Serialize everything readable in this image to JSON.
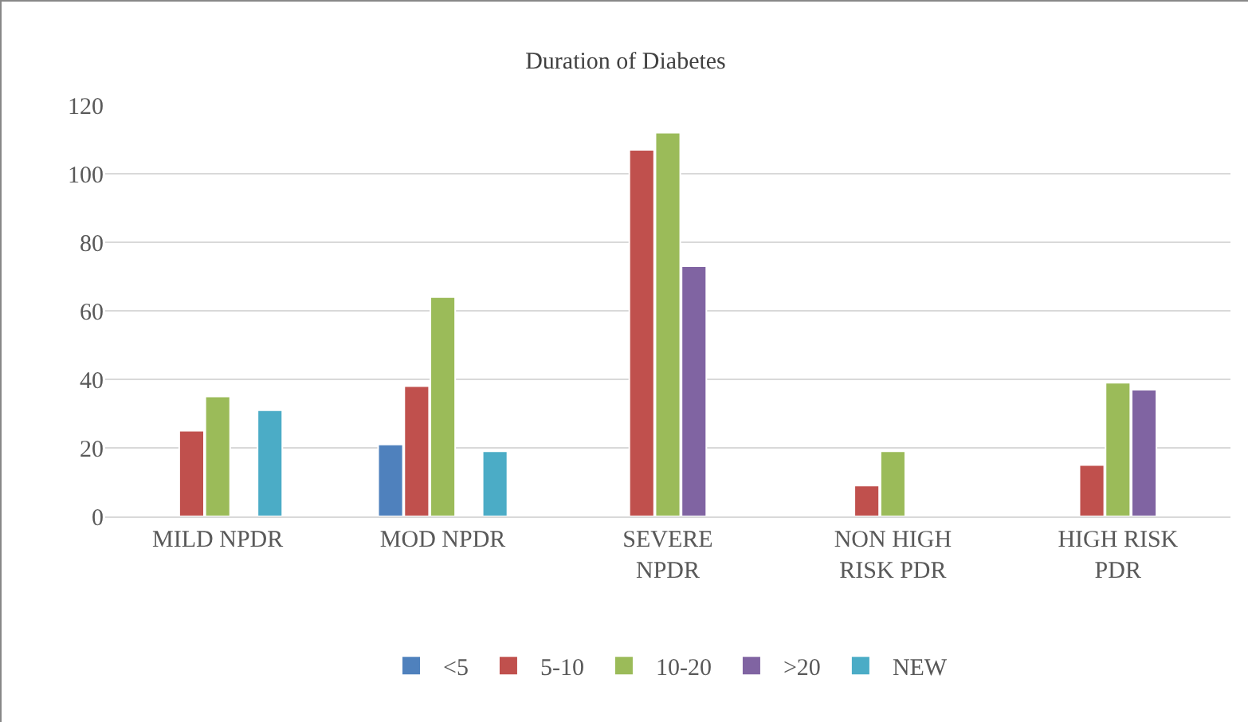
{
  "chart_data": {
    "type": "bar",
    "title": "Duration of Diabetes",
    "categories": [
      "MILD NPDR",
      "MOD NPDR",
      "SEVERE NPDR",
      "NON HIGH RISK PDR",
      "HIGH RISK PDR"
    ],
    "series": [
      {
        "name": "<5",
        "color": "#4f81bd",
        "values": [
          null,
          21,
          null,
          null,
          null
        ]
      },
      {
        "name": "5-10",
        "color": "#c0504d",
        "values": [
          25,
          38,
          107,
          9,
          15
        ]
      },
      {
        "name": "10-20",
        "color": "#9bbb59",
        "values": [
          35,
          64,
          112,
          19,
          39
        ]
      },
      {
        "name": ">20",
        "color": "#8064a2",
        "values": [
          null,
          null,
          73,
          null,
          37
        ]
      },
      {
        "name": "NEW",
        "color": "#4bacc6",
        "values": [
          31,
          19,
          null,
          null,
          null
        ]
      }
    ],
    "ylim": [
      0,
      120
    ],
    "yticks": [
      0,
      20,
      40,
      60,
      80,
      100,
      120
    ],
    "grid": "y",
    "legend": "bottom"
  }
}
